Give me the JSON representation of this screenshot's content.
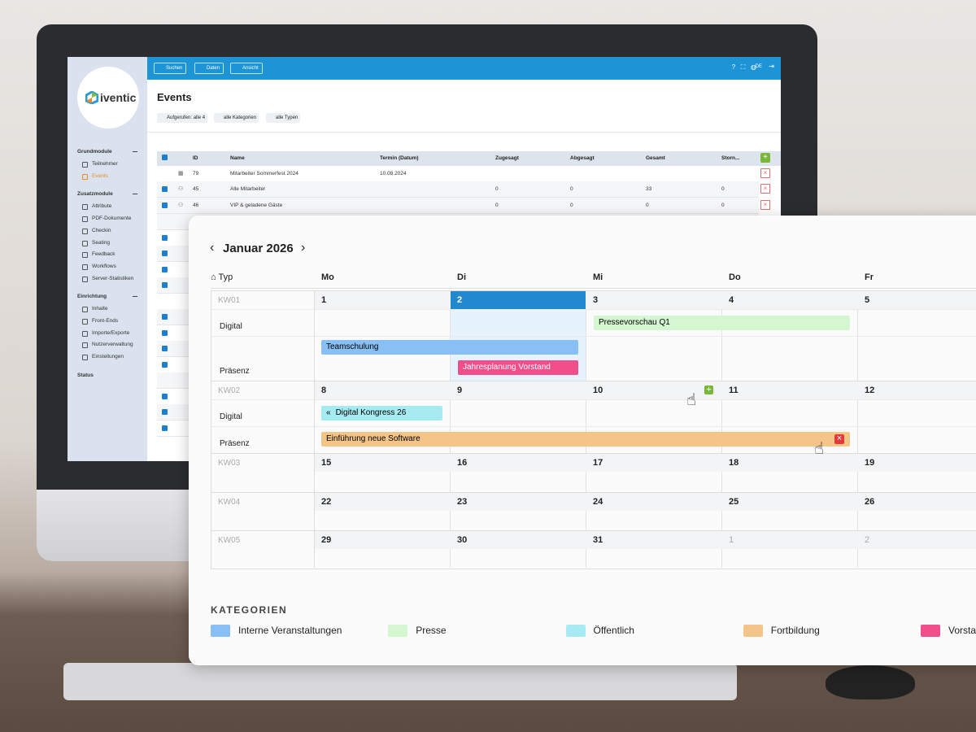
{
  "toolbar": {
    "buttons": [
      "Suchen",
      "Daten",
      "Ansicht"
    ],
    "language": "DE"
  },
  "logo": "iventic",
  "sidebar": [
    {
      "title": "Grundmodule",
      "items": [
        "Teilnehmer",
        "Events"
      ]
    },
    {
      "title": "Zusatzmodule",
      "items": [
        "Attribute",
        "PDF-Dokumente",
        "Checkin",
        "Seating",
        "Feedback",
        "Workflows",
        "Server-Statistiken"
      ]
    },
    {
      "title": "Einrichtung",
      "items": [
        "Inhalte",
        "Front-Ends",
        "Importe/Exporte",
        "Nutzerverwaltung",
        "Einstellungen"
      ]
    },
    {
      "title": "Status"
    }
  ],
  "page": {
    "title": "Events",
    "filters": [
      "Aufgerufen: alle 4",
      "alle Kategorien",
      "alle Typen"
    ]
  },
  "table": {
    "columns": [
      "ID",
      "Name",
      "Termin (Datum)",
      "Zugesagt",
      "Abgesagt",
      "Gesamt",
      "Storn..."
    ],
    "rows": [
      {
        "id": "79",
        "name": "Mitarbeiter Sommerfest 2024",
        "date": "10.08.2024"
      },
      {
        "id": "45",
        "name": "Alle Mitarbeiter",
        "counts": [
          "0",
          "0",
          "33",
          "0"
        ]
      },
      {
        "id": "46",
        "name": "VIP & geladene Gäste",
        "counts": [
          "0",
          "0",
          "0",
          "0"
        ]
      }
    ]
  },
  "calendar": {
    "month": "Januar 2026",
    "type_header": "Typ",
    "weekdays": [
      "Mo",
      "Di",
      "Mi",
      "Do",
      "Fr"
    ],
    "weeks": [
      {
        "label": "KW01",
        "dates": [
          "1",
          "2",
          "3",
          "4",
          "5"
        ],
        "rows": [
          "Digital",
          "Präsenz"
        ]
      },
      {
        "label": "KW02",
        "dates": [
          "8",
          "9",
          "10",
          "11",
          "12"
        ],
        "rows": [
          "Digital",
          "Präsenz"
        ]
      },
      {
        "label": "KW03",
        "dates": [
          "15",
          "16",
          "17",
          "18",
          "19"
        ]
      },
      {
        "label": "KW04",
        "dates": [
          "22",
          "23",
          "24",
          "25",
          "26"
        ]
      },
      {
        "label": "KW05",
        "dates": [
          "29",
          "30",
          "31",
          "1",
          "2"
        ]
      }
    ],
    "events": [
      "Teamschulung",
      "Jahresplanung Vorstand",
      "Pressevorschau Q1",
      "Digital Kongress 26",
      "Einführung neue Software"
    ]
  },
  "legend": {
    "title": "KATEGORIEN",
    "items": [
      "Interne Veranstaltungen",
      "Presse",
      "Öffentlich",
      "Fortbildung",
      "Vorstand"
    ]
  }
}
